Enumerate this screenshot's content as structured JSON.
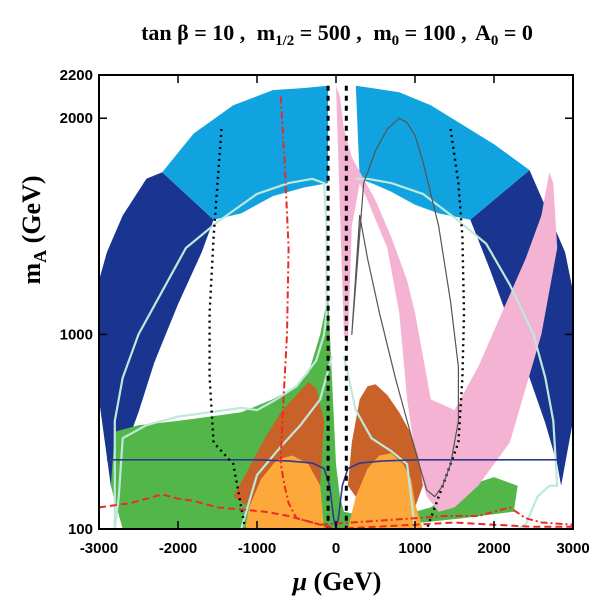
{
  "chart_data": {
    "type": "area",
    "title": {
      "tanb": "tan β = 10 ,",
      "m12_pre": "m",
      "m12_sub": "1/2",
      "m12_post": " = 500 ,",
      "m0_pre": "m",
      "m0_sub": "0",
      "m0_post": " = 100 ,",
      "a0_pre": "A",
      "a0_sub": "0",
      "a0_post": " = 0"
    },
    "xlabel": {
      "sym": "μ",
      "unit": " (GeV)"
    },
    "ylabel": {
      "pre": "m",
      "sub": "A",
      "unit": " (GeV)"
    },
    "xlim": [
      -3000,
      3000
    ],
    "ylim": [
      100,
      2200
    ],
    "xticks": [
      -3000,
      -2000,
      -1000,
      0,
      1000,
      2000,
      3000
    ],
    "xtick_labels": [
      "-3000",
      "-2000",
      "-1000",
      "0",
      "1000",
      "2000",
      "3000"
    ],
    "yticks": [
      100,
      1000,
      2000,
      2200
    ],
    "ytick_labels": [
      "100",
      "1000",
      "2000",
      "2200"
    ],
    "colors": {
      "dark_blue": "#1a3590",
      "light_blue": "#10a3df",
      "green": "#52b748",
      "pink": "#f5b3d3",
      "brown": "#c96229",
      "orange": "#fda83a",
      "cyan_line": "#bfe8dc",
      "navy_line": "#2f3a8f",
      "red_line": "#ed2a24",
      "black_line": "#000000",
      "gray_line": "#555555"
    },
    "regions": [
      {
        "name": "dark-blue-left",
        "color": "dark_blue",
        "x": [
          -3000,
          -3000,
          -2900,
          -2700,
          -2400,
          -2200,
          -1550,
          -1700,
          -2000,
          -2300,
          -2500,
          -2700,
          -2850
        ],
        "y": [
          700,
          1250,
          1380,
          1550,
          1720,
          1750,
          1530,
          1380,
          1140,
          870,
          640,
          440,
          300
        ]
      },
      {
        "name": "dark-blue-right",
        "color": "dark_blue",
        "x": [
          3000,
          3000,
          2900,
          2700,
          2450,
          1700,
          1950,
          2250,
          2450,
          2650,
          2800,
          2850
        ],
        "y": [
          600,
          1200,
          1380,
          1550,
          1760,
          1530,
          1300,
          1000,
          800,
          590,
          400,
          300
        ]
      },
      {
        "name": "light-blue-left",
        "color": "light_blue",
        "x": [
          -2200,
          -1800,
          -1300,
          -800,
          -400,
          -100,
          -100,
          -400,
          -800,
          -1200,
          -1550
        ],
        "y": [
          1750,
          1930,
          2060,
          2130,
          2140,
          2150,
          1700,
          1680,
          1640,
          1560,
          1530
        ]
      },
      {
        "name": "light-blue-right",
        "color": "light_blue",
        "x": [
          250,
          450,
          800,
          1200,
          1600,
          2000,
          2450,
          1700,
          1300,
          1000,
          700,
          450,
          300
        ],
        "y": [
          2150,
          2140,
          2120,
          2060,
          1970,
          1880,
          1760,
          1530,
          1560,
          1600,
          1660,
          1700,
          1720
        ]
      },
      {
        "name": "green",
        "color": "green",
        "x": [
          -2700,
          -2850,
          -2800,
          -2500,
          -2000,
          -1600,
          -1200,
          -800,
          -500,
          -350,
          -200,
          -100,
          0,
          50,
          100,
          500,
          900,
          1200,
          1500,
          2000,
          2300,
          2250,
          1600,
          1100,
          700,
          400,
          200,
          100,
          50
        ],
        "y": [
          100,
          300,
          550,
          580,
          600,
          620,
          640,
          700,
          760,
          820,
          1000,
          1180,
          400,
          250,
          180,
          150,
          170,
          200,
          280,
          340,
          300,
          180,
          150,
          130,
          130,
          120,
          110,
          100,
          100
        ]
      },
      {
        "name": "pink",
        "color": "pink",
        "x": [
          0,
          50,
          100,
          200,
          350,
          500,
          700,
          900,
          1000,
          1100,
          1200,
          1500,
          1800,
          2100,
          2400,
          2600,
          2700,
          2750,
          2800,
          2600,
          2200,
          1800,
          1500,
          1300,
          1150,
          1000,
          900,
          850,
          800,
          650,
          400,
          300,
          200,
          150,
          100
        ],
        "y": [
          2150,
          2100,
          1950,
          1820,
          1720,
          1620,
          1450,
          1250,
          1100,
          900,
          700,
          650,
          850,
          1100,
          1350,
          1550,
          1750,
          1700,
          1400,
          1000,
          500,
          300,
          200,
          180,
          250,
          450,
          700,
          900,
          1100,
          1400,
          1620,
          1700,
          1500,
          950,
          1000
        ]
      },
      {
        "name": "brown-left",
        "color": "brown",
        "x": [
          -1300,
          -1150,
          -900,
          -700,
          -500,
          -350,
          -250,
          -150,
          -200,
          -300,
          -500,
          -800,
          -1100
        ],
        "y": [
          250,
          350,
          520,
          640,
          720,
          780,
          750,
          600,
          300,
          200,
          150,
          150,
          200
        ]
      },
      {
        "name": "brown-right",
        "color": "brown",
        "x": [
          150,
          200,
          300,
          400,
          500,
          650,
          800,
          950,
          1050,
          1100,
          1000,
          800,
          600,
          400,
          250
        ],
        "y": [
          300,
          500,
          700,
          760,
          770,
          720,
          640,
          540,
          420,
          300,
          200,
          150,
          150,
          200,
          250
        ]
      },
      {
        "name": "orange-left",
        "color": "orange",
        "x": [
          -1150,
          -1100,
          -950,
          -750,
          -550,
          -350,
          -200,
          -150,
          -200,
          -300,
          -400,
          -550,
          -750,
          -950
        ],
        "y": [
          100,
          200,
          330,
          420,
          440,
          400,
          300,
          100,
          100,
          100,
          100,
          100,
          100,
          100
        ]
      },
      {
        "name": "orange-right",
        "color": "orange",
        "x": [
          150,
          250,
          400,
          550,
          700,
          850,
          950,
          1000,
          1100,
          1050,
          900,
          650,
          400,
          200
        ],
        "y": [
          100,
          250,
          380,
          440,
          450,
          400,
          330,
          220,
          100,
          100,
          100,
          100,
          100,
          100
        ]
      }
    ],
    "lines": [
      {
        "name": "cyan-contour",
        "color": "cyan_line",
        "width": 2.2,
        "dash": "",
        "x": [
          -2800,
          -2750,
          -2700,
          -2400,
          -2000,
          -1600,
          -1400,
          -1200,
          -1000,
          -800,
          -500,
          -250,
          -150,
          -120,
          -120,
          -150,
          -300,
          -600,
          -1000,
          -1500,
          -1900,
          -2200,
          -2500,
          -2700,
          -2800,
          -2800
        ],
        "y": [
          100,
          250,
          520,
          580,
          620,
          640,
          650,
          660,
          650,
          690,
          760,
          880,
          1000,
          1100,
          1500,
          1700,
          1720,
          1700,
          1650,
          1520,
          1400,
          1200,
          1000,
          800,
          600,
          100
        ]
      },
      {
        "name": "cyan-contour-right",
        "color": "cyan_line",
        "width": 2.2,
        "dash": "",
        "x": [
          250,
          400,
          700,
          1100,
          1500,
          1900,
          2200,
          2500,
          2650,
          2750,
          2800,
          2700,
          2550,
          2400,
          2300
        ],
        "y": [
          1720,
          1720,
          1700,
          1650,
          1540,
          1420,
          1230,
          1000,
          800,
          600,
          300,
          300,
          250,
          120,
          100
        ]
      },
      {
        "name": "cyan-inner-left",
        "color": "cyan_line",
        "width": 2.2,
        "dash": "",
        "x": [
          -1200,
          -1000,
          -700,
          -450,
          -200,
          -50
        ],
        "y": [
          100,
          350,
          480,
          580,
          700,
          900
        ]
      },
      {
        "name": "cyan-inner-right",
        "color": "cyan_line",
        "width": 2.2,
        "dash": "",
        "x": [
          100,
          250,
          450,
          700,
          900,
          1000
        ],
        "y": [
          900,
          650,
          520,
          460,
          400,
          100
        ]
      },
      {
        "name": "navy-line",
        "color": "navy_line",
        "width": 1.6,
        "dash": "",
        "x": [
          -2900,
          -1500,
          -1000,
          -600,
          -300,
          -150,
          -80,
          -30,
          0,
          30,
          80,
          150,
          300,
          600,
          1000,
          1500,
          2800
        ],
        "y": [
          420,
          420,
          420,
          415,
          405,
          380,
          300,
          150,
          100,
          150,
          300,
          380,
          405,
          415,
          420,
          420,
          420
        ]
      },
      {
        "name": "black-dashed-center",
        "color": "black_line",
        "width": 3,
        "dash": "5,5",
        "x": [
          -100,
          -100,
          -100
        ],
        "y": [
          2150,
          1200,
          100
        ]
      },
      {
        "name": "black-dashed-center-right",
        "color": "black_line",
        "width": 3,
        "dash": "5,5",
        "x": [
          130,
          130,
          130
        ],
        "y": [
          2150,
          1200,
          100
        ]
      },
      {
        "name": "black-dotted-left",
        "color": "black_line",
        "width": 2.4,
        "dash": "2,4",
        "x": [
          -1450,
          -1500,
          -1550,
          -1600,
          -1600,
          -1550,
          -1300,
          -1250,
          -1150
        ],
        "y": [
          1950,
          1700,
          1450,
          1100,
          800,
          500,
          400,
          300,
          100
        ]
      },
      {
        "name": "black-dotted-right",
        "color": "black_line",
        "width": 2.4,
        "dash": "2,4",
        "x": [
          1450,
          1550,
          1600,
          1620,
          1600,
          1550,
          1400,
          1250,
          1150
        ],
        "y": [
          1950,
          1700,
          1450,
          1100,
          800,
          500,
          350,
          200,
          100
        ]
      },
      {
        "name": "gray-loop",
        "color": "gray_line",
        "width": 1.2,
        "dash": "",
        "x": [
          350,
          500,
          650,
          800,
          900,
          1000,
          1100,
          1300,
          1450,
          1550,
          1550,
          1450,
          1350,
          1250,
          1150,
          1050,
          900,
          750,
          550,
          400,
          300,
          200,
          350
        ],
        "y": [
          1700,
          1850,
          1950,
          2000,
          1980,
          1920,
          1800,
          1500,
          1150,
          850,
          600,
          400,
          300,
          250,
          280,
          400,
          600,
          800,
          1100,
          1350,
          1550,
          1000,
          1700
        ]
      },
      {
        "name": "red-dashdot",
        "color": "red_line",
        "width": 2,
        "dash": "7,3,2,3",
        "x": [
          -700,
          -650,
          -600,
          -620,
          -680,
          -700,
          -650,
          -600,
          -500,
          -200,
          200,
          600,
          1000,
          1400,
          1800,
          2200,
          2400,
          2600,
          3000
        ],
        "y": [
          2100,
          1800,
          1400,
          1000,
          600,
          400,
          300,
          220,
          150,
          120,
          130,
          140,
          150,
          160,
          160,
          200,
          150,
          130,
          120
        ]
      },
      {
        "name": "red-dashed",
        "color": "red_line",
        "width": 2,
        "dash": "7,4",
        "x": [
          -3000,
          -2600,
          -2200,
          -2000,
          -1800,
          -1500,
          -1200,
          -900,
          -600,
          -300,
          0,
          500,
          1000,
          1500,
          2000,
          2500,
          3000
        ],
        "y": [
          200,
          220,
          260,
          240,
          230,
          200,
          190,
          180,
          160,
          130,
          100,
          110,
          120,
          130,
          120,
          110,
          110
        ]
      }
    ]
  }
}
